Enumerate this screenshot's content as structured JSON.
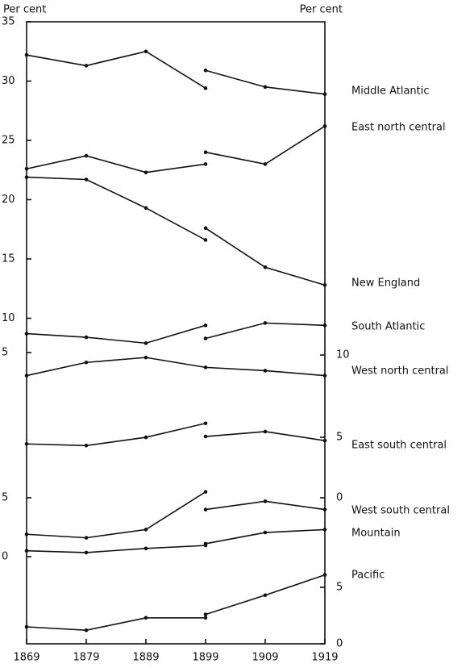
{
  "chart_data": [
    {
      "type": "line",
      "xlim": [
        1869,
        1919
      ],
      "xticks": [
        1869,
        1879,
        1889,
        1899,
        1909,
        1919
      ],
      "ylabel": "Per cent",
      "y2label": "Per cent",
      "ylim": [
        7,
        35
      ],
      "yticks": [
        35,
        30,
        25,
        20,
        15,
        10
      ],
      "series": [
        {
          "name": "Middle Atlantic",
          "color": "#111111",
          "x": [
            1869,
            1879,
            1889,
            1899,
            null,
            1899,
            1909,
            1919
          ],
          "values": [
            32.2,
            31.3,
            32.5,
            29.4,
            null,
            30.9,
            29.5,
            28.9
          ]
        },
        {
          "name": "East north central",
          "color": "#111111",
          "x": [
            1869,
            1879,
            1889,
            1899,
            null,
            1899,
            1909,
            1919
          ],
          "values": [
            22.6,
            23.7,
            22.3,
            23.0,
            null,
            24.0,
            23.0,
            26.2
          ]
        },
        {
          "name": "New England",
          "color": "#111111",
          "x": [
            1869,
            1879,
            1889,
            1899,
            null,
            1899,
            1909,
            1919
          ],
          "values": [
            21.9,
            21.7,
            19.3,
            16.6,
            null,
            17.6,
            14.3,
            12.8
          ]
        },
        {
          "name": "South Atlantic",
          "color": "#111111",
          "x": [
            1869,
            1879,
            1889,
            1899,
            null,
            1899,
            1909,
            1919
          ],
          "values": [
            8.7,
            8.4,
            7.9,
            9.4,
            null,
            8.3,
            9.6,
            9.4
          ]
        }
      ]
    },
    {
      "type": "line",
      "ylim": [
        -1.2,
        5.3
      ],
      "yticks": [
        5
      ],
      "y2lim": [
        3.95,
        10.45
      ],
      "y2ticks": [
        10,
        5
      ],
      "series": [
        {
          "name": "West north central",
          "color": "#111111",
          "x": [
            1869,
            1879,
            1889,
            1899,
            1909,
            1919
          ],
          "values": [
            3.6,
            4.4,
            4.7,
            4.1,
            3.9,
            3.6
          ]
        },
        {
          "name": "East south central",
          "color": "#111111",
          "axis": "y2",
          "x": [
            1869,
            1879,
            1889,
            1899,
            null,
            1899,
            1909,
            1919
          ],
          "values": [
            4.6,
            4.5,
            5.0,
            5.85,
            null,
            5.05,
            5.35,
            4.8
          ]
        }
      ]
    },
    {
      "type": "line",
      "ylim": [
        0,
        5.6
      ],
      "yticks": [
        5,
        0
      ],
      "y2lim": [
        -5,
        0.6
      ],
      "y2ticks": [
        0
      ],
      "series": [
        {
          "name": "West south central",
          "color": "#111111",
          "x": [
            1869,
            1879,
            1889,
            1899,
            null,
            1899,
            1909,
            1919
          ],
          "values": [
            1.9,
            1.6,
            2.3,
            5.5,
            null,
            4.0,
            4.7,
            4.0
          ]
        },
        {
          "name": "Mountain",
          "color": "#111111",
          "x": [
            1869,
            1879,
            1889,
            1899,
            null,
            1899,
            1909,
            1919
          ],
          "values": [
            0.5,
            0.35,
            0.7,
            0.95,
            null,
            1.1,
            2.05,
            2.3
          ]
        }
      ]
    },
    {
      "type": "line",
      "y2lim": [
        0,
        6.5
      ],
      "y2ticks": [
        5,
        0
      ],
      "series": [
        {
          "name": "Pacific",
          "color": "#111111",
          "axis": "y2",
          "x": [
            1869,
            1879,
            1889,
            1899,
            null,
            1899,
            1909,
            1919
          ],
          "values": [
            1.5,
            1.2,
            2.3,
            2.3,
            null,
            2.6,
            4.3,
            6.1
          ]
        }
      ]
    }
  ]
}
